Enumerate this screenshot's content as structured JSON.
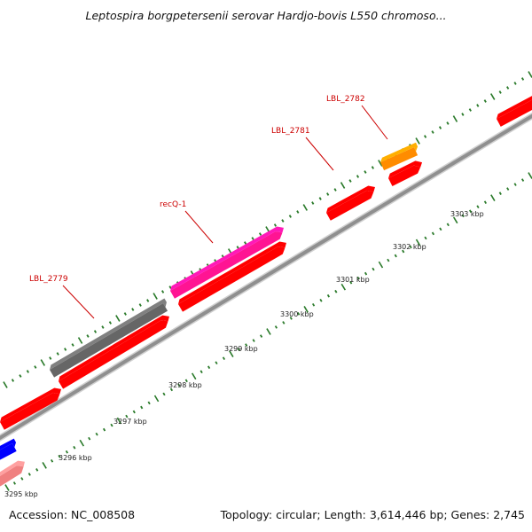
{
  "title": "Leptospira borgpetersenii serovar Hardjo-bovis L550 chromoso...",
  "footer": {
    "accession": "Accession: NC_008508",
    "summary": "Topology: circular; Length: 3,614,446 bp; Genes: 2,745"
  },
  "map": {
    "scale_labels": [
      "3295 kbp",
      "3296 kbp",
      "3297 kbp",
      "3298 kbp",
      "3299 kbp",
      "3300 kbp",
      "3301 kbp",
      "3302 kbp",
      "3303 kbp"
    ],
    "gene_labels": [
      "LBL_2779",
      "recQ-1",
      "LBL_2781",
      "LBL_2782"
    ],
    "colors": {
      "backbone": "#8f8f8f",
      "tick": "#2a7a2a",
      "label": "#cc0000",
      "cds_red": "#ff0000",
      "cds_gray": "#666666",
      "cds_pink": "#ff1493",
      "cds_orange": "#ff8c00",
      "cds_blue": "#0000ff",
      "cds_light_red": "#f08080"
    }
  }
}
